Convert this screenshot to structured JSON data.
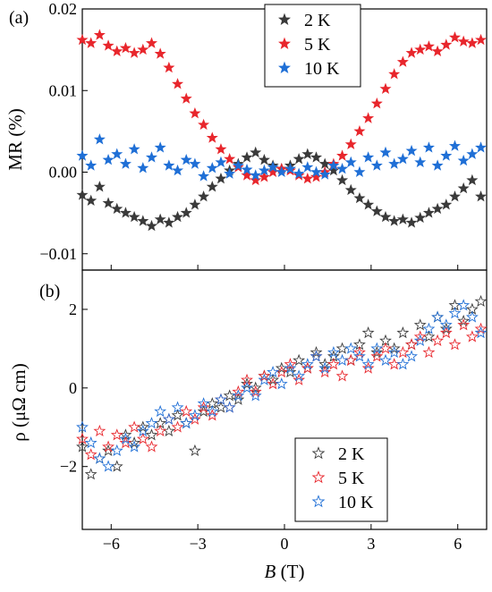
{
  "colors": {
    "2 K": "#3a3a3a",
    "5 K": "#e8262c",
    "10 K": "#1f6fd6"
  },
  "chart_data": [
    {
      "panel": "(a)",
      "type": "scatter",
      "marker": "filled-star",
      "ylabel": "MR (%)",
      "xlabel": "",
      "xlim": [
        -7,
        7
      ],
      "ylim": [
        -0.012,
        0.02
      ],
      "xticks": [
        -6,
        -3,
        0,
        3,
        6
      ],
      "yticks": [
        0.02,
        0.01,
        0.0,
        -0.01
      ],
      "ytick_labels": [
        "0.02",
        "0.01",
        "0.00",
        "−0.01"
      ],
      "legend": {
        "position": "top-center",
        "entries": [
          "2 K",
          "5 K",
          "10 K"
        ]
      },
      "series": [
        {
          "name": "2 K",
          "x": [
            -7.0,
            -6.7,
            -6.4,
            -6.1,
            -5.8,
            -5.5,
            -5.2,
            -4.9,
            -4.6,
            -4.3,
            -4.0,
            -3.7,
            -3.4,
            -3.1,
            -2.8,
            -2.5,
            -2.2,
            -1.9,
            -1.6,
            -1.3,
            -1.0,
            -0.7,
            -0.4,
            -0.1,
            0.2,
            0.5,
            0.8,
            1.1,
            1.4,
            1.7,
            2.0,
            2.3,
            2.6,
            2.9,
            3.2,
            3.5,
            3.8,
            4.1,
            4.4,
            4.7,
            5.0,
            5.3,
            5.6,
            5.9,
            6.2,
            6.5,
            6.8
          ],
          "y": [
            -0.0028,
            -0.0035,
            -0.0018,
            -0.0038,
            -0.0045,
            -0.005,
            -0.0055,
            -0.006,
            -0.0066,
            -0.0058,
            -0.0062,
            -0.0055,
            -0.005,
            -0.004,
            -0.003,
            -0.0018,
            -0.0008,
            0.0002,
            0.001,
            0.0018,
            0.0024,
            0.0015,
            0.0008,
            0.0004,
            0.0008,
            0.0016,
            0.0022,
            0.0018,
            0.001,
            0.0002,
            -0.001,
            -0.0022,
            -0.0032,
            -0.004,
            -0.0048,
            -0.0055,
            -0.006,
            -0.0058,
            -0.0062,
            -0.0056,
            -0.005,
            -0.0045,
            -0.004,
            -0.003,
            -0.002,
            -0.001,
            -0.003
          ]
        },
        {
          "name": "5 K",
          "x": [
            -7.0,
            -6.7,
            -6.4,
            -6.1,
            -5.8,
            -5.5,
            -5.2,
            -4.9,
            -4.6,
            -4.3,
            -4.0,
            -3.7,
            -3.4,
            -3.1,
            -2.8,
            -2.5,
            -2.2,
            -1.9,
            -1.6,
            -1.3,
            -1.0,
            -0.7,
            -0.4,
            -0.1,
            0.2,
            0.5,
            0.8,
            1.1,
            1.4,
            1.7,
            2.0,
            2.3,
            2.6,
            2.9,
            3.2,
            3.5,
            3.8,
            4.1,
            4.4,
            4.7,
            5.0,
            5.3,
            5.6,
            5.9,
            6.2,
            6.5,
            6.8
          ],
          "y": [
            0.0162,
            0.0158,
            0.0168,
            0.0155,
            0.0148,
            0.0152,
            0.0146,
            0.015,
            0.0158,
            0.0145,
            0.0128,
            0.0108,
            0.009,
            0.0072,
            0.0058,
            0.0042,
            0.0028,
            0.0016,
            0.0006,
            -0.0004,
            -0.001,
            -0.0006,
            0.0,
            0.0004,
            0.0002,
            -0.0004,
            -0.0008,
            -0.0006,
            0.0,
            0.001,
            0.002,
            0.0034,
            0.005,
            0.0066,
            0.0084,
            0.0102,
            0.012,
            0.0135,
            0.0146,
            0.015,
            0.0154,
            0.0148,
            0.0156,
            0.0165,
            0.016,
            0.0158,
            0.0162
          ]
        },
        {
          "name": "10 K",
          "x": [
            -7.0,
            -6.7,
            -6.4,
            -6.1,
            -5.8,
            -5.5,
            -5.2,
            -4.9,
            -4.6,
            -4.3,
            -4.0,
            -3.7,
            -3.4,
            -3.1,
            -2.8,
            -2.5,
            -2.2,
            -1.9,
            -1.6,
            -1.3,
            -1.0,
            -0.7,
            -0.4,
            -0.1,
            0.2,
            0.5,
            0.8,
            1.1,
            1.4,
            1.7,
            2.0,
            2.3,
            2.6,
            2.9,
            3.2,
            3.5,
            3.8,
            4.1,
            4.4,
            4.7,
            5.0,
            5.3,
            5.6,
            5.9,
            6.2,
            6.5,
            6.8
          ],
          "y": [
            0.002,
            0.0008,
            0.004,
            0.0015,
            0.0022,
            0.001,
            0.0028,
            0.0005,
            0.0018,
            0.003,
            0.0008,
            0.0002,
            0.0015,
            0.001,
            -0.0005,
            0.0005,
            0.0012,
            -0.0002,
            0.0008,
            0.0003,
            -0.0004,
            0.0002,
            0.0006,
            0.0,
            0.0004,
            -0.0002,
            0.0006,
            0.0,
            -0.0003,
            0.0008,
            0.0004,
            0.0012,
            0.0,
            0.0018,
            0.0008,
            0.0024,
            0.001,
            0.0016,
            0.0026,
            0.0012,
            0.003,
            0.0008,
            0.002,
            0.0032,
            0.0014,
            0.0022,
            0.003
          ]
        }
      ]
    },
    {
      "panel": "(b)",
      "type": "scatter",
      "marker": "open-star",
      "ylabel": "ρ (μΩ cm)",
      "xlabel_italic": "B",
      "xlabel_rest": " (T)",
      "xlim": [
        -7,
        7
      ],
      "ylim": [
        -3.6,
        3.0
      ],
      "xticks": [
        -6,
        -3,
        0,
        3,
        6
      ],
      "xtick_labels": [
        "−6",
        "−3",
        "0",
        "3",
        "6"
      ],
      "yticks": [
        2,
        0,
        -2
      ],
      "ytick_labels": [
        "2",
        "0",
        "−2"
      ],
      "legend": {
        "position": "bottom-right",
        "entries": [
          "2 K",
          "5 K",
          "10 K"
        ]
      },
      "series": [
        {
          "name": "2 K",
          "x": [
            -7.0,
            -6.7,
            -6.4,
            -6.1,
            -5.8,
            -5.5,
            -5.2,
            -4.9,
            -4.6,
            -4.3,
            -4.0,
            -3.7,
            -3.4,
            -3.1,
            -2.8,
            -2.5,
            -2.2,
            -1.9,
            -1.6,
            -1.3,
            -1.0,
            -0.7,
            -0.4,
            -0.1,
            0.2,
            0.5,
            0.8,
            1.1,
            1.4,
            1.7,
            2.0,
            2.3,
            2.6,
            2.9,
            3.2,
            3.5,
            3.8,
            4.1,
            4.4,
            4.7,
            5.0,
            5.3,
            5.6,
            5.9,
            6.2,
            6.5,
            6.8
          ],
          "y": [
            -1.5,
            -2.2,
            -1.8,
            -1.6,
            -2.0,
            -1.2,
            -1.4,
            -1.0,
            -1.2,
            -0.9,
            -1.1,
            -0.7,
            -0.9,
            -1.6,
            -0.6,
            -0.4,
            -0.5,
            -0.2,
            -0.3,
            0.1,
            0.0,
            0.3,
            0.2,
            0.5,
            0.4,
            0.7,
            0.5,
            0.9,
            0.6,
            0.8,
            1.0,
            0.7,
            1.1,
            1.4,
            0.9,
            1.2,
            1.0,
            1.4,
            1.1,
            1.6,
            1.3,
            1.8,
            1.5,
            2.1,
            1.7,
            2.0,
            2.2
          ]
        },
        {
          "name": "5 K",
          "x": [
            -7.0,
            -6.7,
            -6.4,
            -6.1,
            -5.8,
            -5.5,
            -5.2,
            -4.9,
            -4.6,
            -4.3,
            -4.0,
            -3.7,
            -3.4,
            -3.1,
            -2.8,
            -2.5,
            -2.2,
            -1.9,
            -1.6,
            -1.3,
            -1.0,
            -0.7,
            -0.4,
            -0.1,
            0.2,
            0.5,
            0.8,
            1.1,
            1.4,
            1.7,
            2.0,
            2.3,
            2.6,
            2.9,
            3.2,
            3.5,
            3.8,
            4.1,
            4.4,
            4.7,
            5.0,
            5.3,
            5.6,
            5.9,
            6.2,
            6.5,
            6.8
          ],
          "y": [
            -1.3,
            -1.7,
            -1.1,
            -1.5,
            -1.2,
            -1.4,
            -1.0,
            -1.3,
            -1.5,
            -1.1,
            -0.8,
            -1.0,
            -0.6,
            -0.8,
            -0.5,
            -0.7,
            -0.3,
            -0.5,
            -0.1,
            0.2,
            -0.1,
            0.3,
            0.1,
            0.4,
            0.6,
            0.2,
            0.5,
            0.8,
            0.4,
            0.6,
            0.3,
            0.7,
            0.9,
            0.5,
            0.8,
            1.0,
            0.6,
            0.9,
            1.1,
            1.3,
            0.9,
            1.2,
            1.4,
            1.1,
            1.6,
            1.3,
            1.5
          ]
        },
        {
          "name": "10 K",
          "x": [
            -7.0,
            -6.7,
            -6.4,
            -6.1,
            -5.8,
            -5.5,
            -5.2,
            -4.9,
            -4.6,
            -4.3,
            -4.0,
            -3.7,
            -3.4,
            -3.1,
            -2.8,
            -2.5,
            -2.2,
            -1.9,
            -1.6,
            -1.3,
            -1.0,
            -0.7,
            -0.4,
            -0.1,
            0.2,
            0.5,
            0.8,
            1.1,
            1.4,
            1.7,
            2.0,
            2.3,
            2.6,
            2.9,
            3.2,
            3.5,
            3.8,
            4.1,
            4.4,
            4.7,
            5.0,
            5.3,
            5.6,
            5.9,
            6.2,
            6.5,
            6.8
          ],
          "y": [
            -1.0,
            -1.4,
            -1.8,
            -2.0,
            -1.6,
            -1.3,
            -1.5,
            -1.1,
            -0.9,
            -0.6,
            -0.8,
            -0.5,
            -0.9,
            -0.7,
            -0.4,
            -0.6,
            -0.3,
            -0.5,
            -0.2,
            0.0,
            -0.2,
            0.2,
            0.4,
            0.1,
            0.5,
            0.3,
            0.6,
            0.8,
            0.5,
            0.9,
            0.7,
            1.0,
            0.8,
            0.6,
            1.0,
            0.7,
            0.9,
            0.6,
            0.8,
            1.2,
            1.5,
            1.8,
            1.6,
            1.9,
            2.1,
            1.8,
            1.4
          ]
        }
      ]
    }
  ]
}
